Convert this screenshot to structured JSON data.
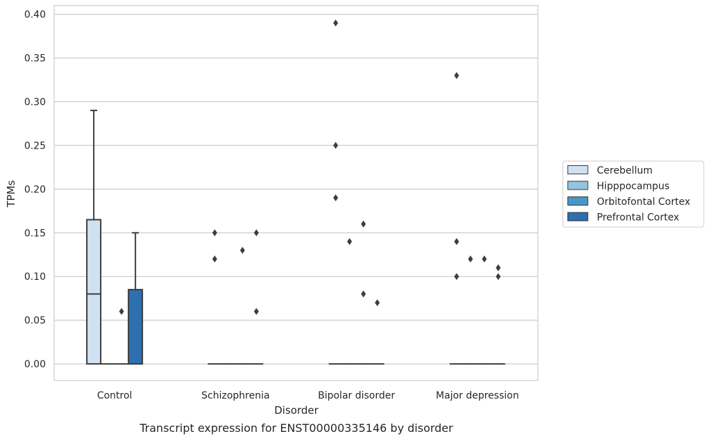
{
  "chart_data": {
    "type": "box",
    "title": "",
    "caption": "Transcript expression for ENST00000335146 by disorder",
    "xlabel": "Disorder",
    "ylabel": "TPMs",
    "ylim": [
      -0.019,
      0.41
    ],
    "yticks": [
      0.0,
      0.05,
      0.1,
      0.15,
      0.2,
      0.25,
      0.3,
      0.35,
      0.4
    ],
    "ytick_labels": [
      "0.00",
      "0.05",
      "0.10",
      "0.15",
      "0.20",
      "0.25",
      "0.30",
      "0.35",
      "0.40"
    ],
    "grid": "horizontal",
    "legend_position": "right",
    "categories": [
      "Control",
      "Schizophrenia",
      "Bipolar disorder",
      "Major depression"
    ],
    "series": [
      {
        "name": "Cerebellum",
        "color": "#d0e1f2",
        "boxes": [
          {
            "q1": 0.0,
            "median": 0.08,
            "q3": 0.165,
            "whisker_low": 0.0,
            "whisker_high": 0.29,
            "outliers": []
          },
          {
            "q1": 0.0,
            "median": 0.0,
            "q3": 0.0,
            "whisker_low": 0.0,
            "whisker_high": 0.0,
            "outliers": [
              0.15,
              0.12
            ]
          },
          {
            "q1": 0.0,
            "median": 0.0,
            "q3": 0.0,
            "whisker_low": 0.0,
            "whisker_high": 0.0,
            "outliers": [
              0.39,
              0.25,
              0.19
            ]
          },
          {
            "q1": 0.0,
            "median": 0.0,
            "q3": 0.0,
            "whisker_low": 0.0,
            "whisker_high": 0.0,
            "outliers": [
              0.33,
              0.14,
              0.1
            ]
          }
        ]
      },
      {
        "name": "Hipppocampus",
        "color": "#94c4df",
        "boxes": [
          {
            "q1": 0.0,
            "median": 0.0,
            "q3": 0.0,
            "whisker_low": 0.0,
            "whisker_high": 0.0,
            "outliers": []
          },
          {
            "q1": 0.0,
            "median": 0.0,
            "q3": 0.0,
            "whisker_low": 0.0,
            "whisker_high": 0.0,
            "outliers": []
          },
          {
            "q1": 0.0,
            "median": 0.0,
            "q3": 0.0,
            "whisker_low": 0.0,
            "whisker_high": 0.0,
            "outliers": [
              0.14
            ]
          },
          {
            "q1": 0.0,
            "median": 0.0,
            "q3": 0.0,
            "whisker_low": 0.0,
            "whisker_high": 0.0,
            "outliers": [
              0.12
            ]
          }
        ]
      },
      {
        "name": "Orbitofontal Cortex",
        "color": "#4a98c9",
        "boxes": [
          {
            "q1": 0.0,
            "median": 0.0,
            "q3": 0.0,
            "whisker_low": 0.0,
            "whisker_high": 0.0,
            "outliers": [
              0.06
            ]
          },
          {
            "q1": 0.0,
            "median": 0.0,
            "q3": 0.0,
            "whisker_low": 0.0,
            "whisker_high": 0.0,
            "outliers": [
              0.13
            ]
          },
          {
            "q1": 0.0,
            "median": 0.0,
            "q3": 0.0,
            "whisker_low": 0.0,
            "whisker_high": 0.0,
            "outliers": [
              0.16,
              0.08
            ]
          },
          {
            "q1": 0.0,
            "median": 0.0,
            "q3": 0.0,
            "whisker_low": 0.0,
            "whisker_high": 0.0,
            "outliers": [
              0.12
            ]
          }
        ]
      },
      {
        "name": "Prefrontal Cortex",
        "color": "#2e6faf",
        "boxes": [
          {
            "q1": 0.0,
            "median": 0.0,
            "q3": 0.085,
            "whisker_low": 0.0,
            "whisker_high": 0.15,
            "outliers": []
          },
          {
            "q1": 0.0,
            "median": 0.0,
            "q3": 0.0,
            "whisker_low": 0.0,
            "whisker_high": 0.0,
            "outliers": [
              0.15,
              0.06
            ]
          },
          {
            "q1": 0.0,
            "median": 0.0,
            "q3": 0.0,
            "whisker_low": 0.0,
            "whisker_high": 0.0,
            "outliers": [
              0.07
            ]
          },
          {
            "q1": 0.0,
            "median": 0.0,
            "q3": 0.0,
            "whisker_low": 0.0,
            "whisker_high": 0.0,
            "outliers": [
              0.11,
              0.1
            ]
          }
        ]
      }
    ]
  }
}
